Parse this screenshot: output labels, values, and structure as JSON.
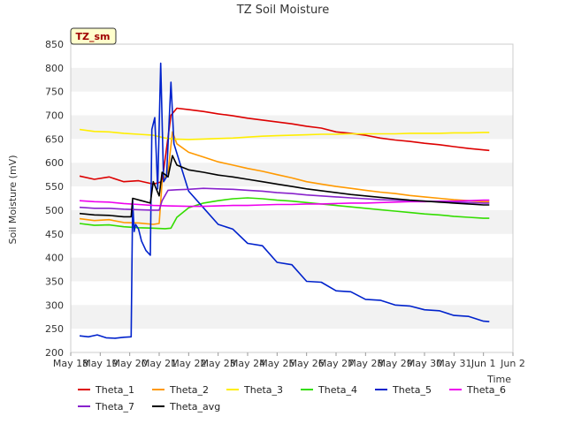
{
  "chart_data": {
    "type": "line",
    "title": "TZ Soil Moisture",
    "xlabel": "Time",
    "ylabel": "Soil Moisture (mV)",
    "badge": "TZ_sm",
    "ylim": [
      200,
      850
    ],
    "yticks": [
      200,
      250,
      300,
      350,
      400,
      450,
      500,
      550,
      600,
      650,
      700,
      750,
      800,
      850
    ],
    "xlim": [
      0,
      15
    ],
    "xticks": [
      {
        "v": 0,
        "label": "May 18"
      },
      {
        "v": 1,
        "label": "May 19"
      },
      {
        "v": 2,
        "label": "May 20"
      },
      {
        "v": 3,
        "label": "May 21"
      },
      {
        "v": 4,
        "label": "May 22"
      },
      {
        "v": 5,
        "label": "May 23"
      },
      {
        "v": 6,
        "label": "May 24"
      },
      {
        "v": 7,
        "label": "May 25"
      },
      {
        "v": 8,
        "label": "May 26"
      },
      {
        "v": 9,
        "label": "May 27"
      },
      {
        "v": 10,
        "label": "May 28"
      },
      {
        "v": 11,
        "label": "May 29"
      },
      {
        "v": 12,
        "label": "May 30"
      },
      {
        "v": 13,
        "label": "May 31"
      },
      {
        "v": 14,
        "label": "Jun 1"
      },
      {
        "v": 15,
        "label": "Jun 2"
      }
    ],
    "series": [
      {
        "name": "Theta_1",
        "color": "#dd0000",
        "points": [
          [
            0.3,
            572
          ],
          [
            0.8,
            565
          ],
          [
            1.3,
            570
          ],
          [
            1.8,
            560
          ],
          [
            2.3,
            562
          ],
          [
            2.8,
            555
          ],
          [
            3.1,
            560
          ],
          [
            3.4,
            700
          ],
          [
            3.6,
            715
          ],
          [
            4,
            712
          ],
          [
            4.5,
            708
          ],
          [
            5,
            703
          ],
          [
            5.5,
            699
          ],
          [
            6,
            694
          ],
          [
            6.5,
            690
          ],
          [
            7,
            686
          ],
          [
            7.5,
            682
          ],
          [
            8,
            677
          ],
          [
            8.5,
            673
          ],
          [
            9,
            665
          ],
          [
            9.5,
            662
          ],
          [
            10,
            658
          ],
          [
            10.5,
            652
          ],
          [
            11,
            648
          ],
          [
            11.5,
            645
          ],
          [
            12,
            641
          ],
          [
            12.5,
            638
          ],
          [
            13,
            634
          ],
          [
            13.5,
            630
          ],
          [
            14,
            627
          ],
          [
            14.2,
            626
          ]
        ]
      },
      {
        "name": "Theta_2",
        "color": "#ff9900",
        "points": [
          [
            0.3,
            482
          ],
          [
            0.8,
            478
          ],
          [
            1.3,
            480
          ],
          [
            1.8,
            474
          ],
          [
            2.3,
            473
          ],
          [
            2.8,
            470
          ],
          [
            3.0,
            472
          ],
          [
            3.1,
            560
          ],
          [
            3.3,
            580
          ],
          [
            3.45,
            665
          ],
          [
            3.6,
            640
          ],
          [
            4,
            622
          ],
          [
            4.5,
            612
          ],
          [
            5,
            602
          ],
          [
            5.5,
            595
          ],
          [
            6,
            588
          ],
          [
            6.5,
            582
          ],
          [
            7,
            575
          ],
          [
            7.5,
            568
          ],
          [
            8,
            560
          ],
          [
            8.5,
            555
          ],
          [
            9,
            550
          ],
          [
            9.5,
            546
          ],
          [
            10,
            542
          ],
          [
            10.5,
            538
          ],
          [
            11,
            535
          ],
          [
            11.5,
            531
          ],
          [
            12,
            528
          ],
          [
            12.5,
            525
          ],
          [
            13,
            522
          ],
          [
            13.5,
            520
          ],
          [
            14,
            518
          ],
          [
            14.2,
            518
          ]
        ]
      },
      {
        "name": "Theta_3",
        "color": "#ffee00",
        "points": [
          [
            0.3,
            670
          ],
          [
            0.8,
            666
          ],
          [
            1.3,
            665
          ],
          [
            1.8,
            662
          ],
          [
            2.3,
            660
          ],
          [
            2.8,
            658
          ],
          [
            3.2,
            652
          ],
          [
            3.5,
            650
          ],
          [
            4,
            649
          ],
          [
            4.5,
            650
          ],
          [
            5,
            651
          ],
          [
            5.5,
            652
          ],
          [
            6,
            654
          ],
          [
            6.5,
            656
          ],
          [
            7,
            657
          ],
          [
            7.5,
            658
          ],
          [
            8,
            659
          ],
          [
            8.5,
            660
          ],
          [
            9,
            660
          ],
          [
            9.5,
            661
          ],
          [
            10,
            661
          ],
          [
            10.5,
            661
          ],
          [
            11,
            661
          ],
          [
            11.5,
            662
          ],
          [
            12,
            662
          ],
          [
            12.5,
            662
          ],
          [
            13,
            663
          ],
          [
            13.5,
            663
          ],
          [
            14,
            664
          ],
          [
            14.2,
            664
          ]
        ]
      },
      {
        "name": "Theta_4",
        "color": "#33dd00",
        "points": [
          [
            0.3,
            472
          ],
          [
            0.8,
            468
          ],
          [
            1.3,
            469
          ],
          [
            1.8,
            465
          ],
          [
            2.3,
            463
          ],
          [
            2.8,
            462
          ],
          [
            3.2,
            461
          ],
          [
            3.4,
            462
          ],
          [
            3.6,
            485
          ],
          [
            4,
            505
          ],
          [
            4.5,
            515
          ],
          [
            5,
            520
          ],
          [
            5.5,
            524
          ],
          [
            6,
            526
          ],
          [
            6.5,
            524
          ],
          [
            7,
            521
          ],
          [
            7.5,
            519
          ],
          [
            8,
            516
          ],
          [
            8.5,
            513
          ],
          [
            9,
            510
          ],
          [
            9.5,
            507
          ],
          [
            10,
            504
          ],
          [
            10.5,
            501
          ],
          [
            11,
            498
          ],
          [
            11.5,
            495
          ],
          [
            12,
            492
          ],
          [
            12.5,
            490
          ],
          [
            13,
            487
          ],
          [
            13.5,
            485
          ],
          [
            14,
            483
          ],
          [
            14.2,
            483
          ]
        ]
      },
      {
        "name": "Theta_5",
        "color": "#0022cc",
        "points": [
          [
            0.3,
            235
          ],
          [
            0.6,
            233
          ],
          [
            0.9,
            237
          ],
          [
            1.2,
            231
          ],
          [
            1.5,
            230
          ],
          [
            1.8,
            232
          ],
          [
            2.05,
            233
          ],
          [
            2.1,
            520
          ],
          [
            2.15,
            455
          ],
          [
            2.2,
            470
          ],
          [
            2.3,
            460
          ],
          [
            2.4,
            435
          ],
          [
            2.55,
            415
          ],
          [
            2.7,
            405
          ],
          [
            2.75,
            670
          ],
          [
            2.85,
            695
          ],
          [
            2.95,
            545
          ],
          [
            3.05,
            810
          ],
          [
            3.15,
            560
          ],
          [
            3.25,
            570
          ],
          [
            3.4,
            770
          ],
          [
            3.5,
            640
          ],
          [
            3.7,
            600
          ],
          [
            4,
            540
          ],
          [
            4.5,
            505
          ],
          [
            5,
            470
          ],
          [
            5.5,
            460
          ],
          [
            6,
            430
          ],
          [
            6.5,
            425
          ],
          [
            7,
            390
          ],
          [
            7.5,
            385
          ],
          [
            8,
            350
          ],
          [
            8.5,
            348
          ],
          [
            9,
            330
          ],
          [
            9.5,
            328
          ],
          [
            10,
            312
          ],
          [
            10.5,
            310
          ],
          [
            11,
            300
          ],
          [
            11.5,
            298
          ],
          [
            12,
            290
          ],
          [
            12.5,
            288
          ],
          [
            13,
            278
          ],
          [
            13.5,
            276
          ],
          [
            14,
            266
          ],
          [
            14.2,
            265
          ]
        ]
      },
      {
        "name": "Theta_6",
        "color": "#ee00ee",
        "points": [
          [
            0.3,
            520
          ],
          [
            0.8,
            518
          ],
          [
            1.3,
            517
          ],
          [
            1.8,
            514
          ],
          [
            2.3,
            512
          ],
          [
            2.8,
            510
          ],
          [
            3.3,
            509
          ],
          [
            4,
            508
          ],
          [
            4.5,
            508
          ],
          [
            5,
            509
          ],
          [
            5.5,
            510
          ],
          [
            6,
            510
          ],
          [
            6.5,
            511
          ],
          [
            7,
            512
          ],
          [
            7.5,
            512
          ],
          [
            8,
            513
          ],
          [
            8.5,
            513
          ],
          [
            9,
            514
          ],
          [
            9.5,
            515
          ],
          [
            10,
            515
          ],
          [
            10.5,
            516
          ],
          [
            11,
            517
          ],
          [
            11.5,
            518
          ],
          [
            12,
            518
          ],
          [
            12.5,
            519
          ],
          [
            13,
            519
          ],
          [
            13.5,
            520
          ],
          [
            14,
            521
          ],
          [
            14.2,
            521
          ]
        ]
      },
      {
        "name": "Theta_7",
        "color": "#8822cc",
        "points": [
          [
            0.3,
            506
          ],
          [
            0.8,
            504
          ],
          [
            1.3,
            504
          ],
          [
            1.8,
            502
          ],
          [
            2.3,
            501
          ],
          [
            2.8,
            500
          ],
          [
            3.0,
            500
          ],
          [
            3.1,
            520
          ],
          [
            3.3,
            542
          ],
          [
            3.6,
            543
          ],
          [
            4,
            544
          ],
          [
            4.5,
            546
          ],
          [
            5,
            545
          ],
          [
            5.5,
            544
          ],
          [
            6,
            542
          ],
          [
            6.5,
            540
          ],
          [
            7,
            537
          ],
          [
            7.5,
            535
          ],
          [
            8,
            532
          ],
          [
            8.5,
            530
          ],
          [
            9,
            528
          ],
          [
            9.5,
            526
          ],
          [
            10,
            524
          ],
          [
            10.5,
            522
          ],
          [
            11,
            521
          ],
          [
            11.5,
            520
          ],
          [
            12,
            519
          ],
          [
            12.5,
            518
          ],
          [
            13,
            517
          ],
          [
            13.5,
            516
          ],
          [
            14,
            515
          ],
          [
            14.2,
            515
          ]
        ]
      },
      {
        "name": "Theta_avg",
        "color": "#000000",
        "points": [
          [
            0.3,
            493
          ],
          [
            0.8,
            490
          ],
          [
            1.3,
            489
          ],
          [
            1.8,
            486
          ],
          [
            2.05,
            486
          ],
          [
            2.1,
            525
          ],
          [
            2.4,
            520
          ],
          [
            2.7,
            515
          ],
          [
            2.8,
            560
          ],
          [
            3.0,
            530
          ],
          [
            3.1,
            580
          ],
          [
            3.3,
            570
          ],
          [
            3.45,
            615
          ],
          [
            3.6,
            595
          ],
          [
            4,
            585
          ],
          [
            4.5,
            580
          ],
          [
            5,
            574
          ],
          [
            5.5,
            570
          ],
          [
            6,
            565
          ],
          [
            6.5,
            560
          ],
          [
            7,
            555
          ],
          [
            7.5,
            550
          ],
          [
            8,
            545
          ],
          [
            8.5,
            541
          ],
          [
            9,
            537
          ],
          [
            9.5,
            533
          ],
          [
            10,
            530
          ],
          [
            10.5,
            527
          ],
          [
            11,
            524
          ],
          [
            11.5,
            521
          ],
          [
            12,
            519
          ],
          [
            12.5,
            517
          ],
          [
            13,
            515
          ],
          [
            13.5,
            513
          ],
          [
            14,
            511
          ],
          [
            14.2,
            511
          ]
        ]
      }
    ],
    "legend": [
      "Theta_1",
      "Theta_2",
      "Theta_3",
      "Theta_4",
      "Theta_5",
      "Theta_6",
      "Theta_7",
      "Theta_avg"
    ]
  }
}
